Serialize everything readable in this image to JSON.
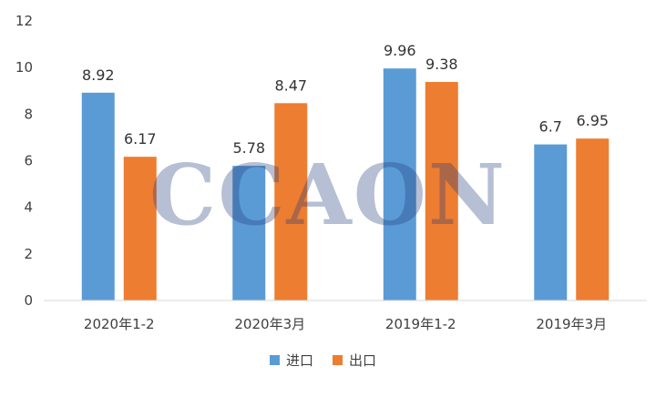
{
  "chart_data": {
    "type": "bar",
    "categories": [
      "2020年1-2",
      "2020年3月",
      "2019年1-2",
      "2019年3月"
    ],
    "series": [
      {
        "name": "进口",
        "values": [
          8.92,
          5.78,
          9.96,
          6.7
        ],
        "color": "#5B9BD5"
      },
      {
        "name": "出口",
        "values": [
          6.17,
          8.47,
          9.38,
          6.95
        ],
        "color": "#ED7D31"
      }
    ],
    "data_labels": [
      [
        "8.92",
        "5.78",
        "9.96",
        "6.7"
      ],
      [
        "6.17",
        "8.47",
        "9.38",
        "6.95"
      ]
    ],
    "ylim": [
      0,
      12
    ],
    "yticks": [
      0,
      2,
      4,
      6,
      8,
      10,
      12
    ],
    "title": "",
    "xlabel": "",
    "ylabel": "",
    "grid": false,
    "legend_position": "bottom"
  },
  "watermark": "CCAON"
}
